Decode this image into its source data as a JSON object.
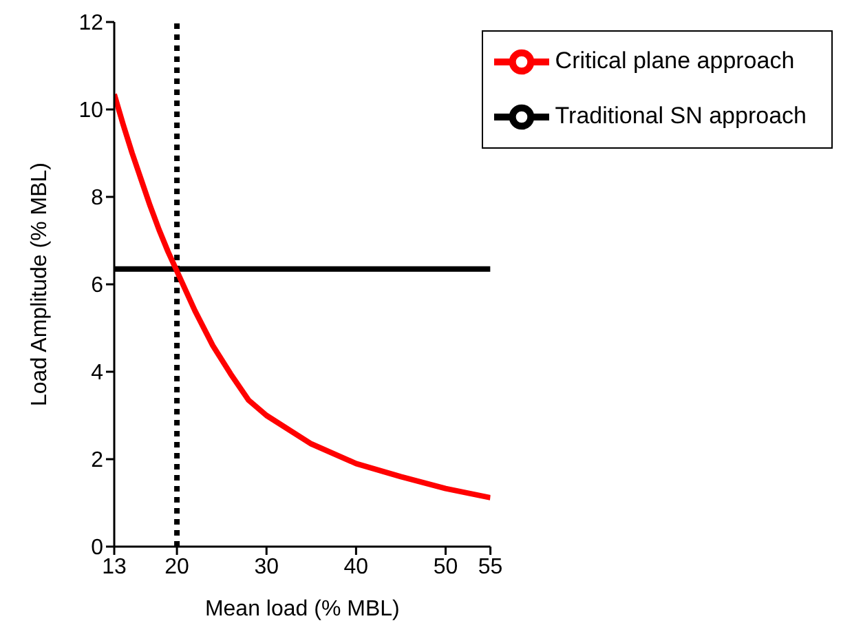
{
  "chart_data": {
    "type": "line",
    "xlabel": "Mean load (% MBL)",
    "ylabel": "Load Amplitude (% MBL)",
    "xlim": [
      13,
      55
    ],
    "xticks": [
      13,
      20,
      30,
      40,
      50,
      55
    ],
    "ylim": [
      0,
      12
    ],
    "yticks": [
      0,
      2,
      4,
      6,
      8,
      10,
      12
    ],
    "series": [
      {
        "name": "Traditional SN approach",
        "color": "#000000",
        "x": [
          13,
          55
        ],
        "values": [
          6.35,
          6.35
        ]
      },
      {
        "name": "Critical plane approach",
        "color": "#ff0000",
        "x": [
          13,
          14,
          15,
          16,
          17,
          18,
          19,
          20,
          22,
          24,
          26,
          28,
          30,
          35,
          40,
          45,
          50,
          55
        ],
        "values": [
          10.35,
          9.65,
          9.0,
          8.4,
          7.8,
          7.25,
          6.75,
          6.3,
          5.4,
          4.6,
          3.95,
          3.35,
          3.0,
          2.35,
          1.9,
          1.6,
          1.33,
          1.12
        ]
      }
    ],
    "ref_lines": [
      {
        "axis": "x",
        "value": 20,
        "color": "#000000",
        "line_style": "dotted"
      }
    ],
    "legend": "top right",
    "grid": false,
    "marker": "none",
    "line_style": "solid"
  }
}
